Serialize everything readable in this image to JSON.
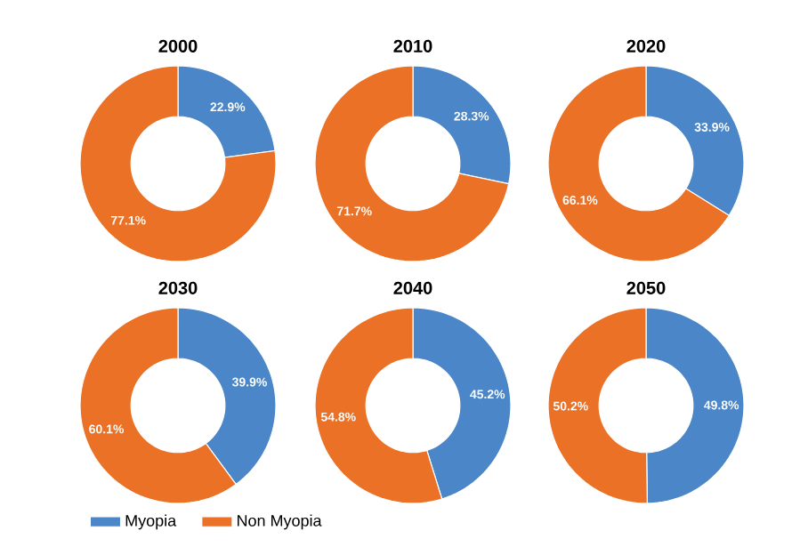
{
  "chart_data": [
    {
      "type": "donut",
      "title": "2000",
      "categories": [
        "Myopia",
        "Non Myopia"
      ],
      "values": [
        22.9,
        77.1
      ],
      "value_labels": [
        "22.9%",
        "77.1%"
      ],
      "colors": [
        "#4a86c8",
        "#ea7125"
      ],
      "legend": "bottom"
    },
    {
      "type": "donut",
      "title": "2010",
      "categories": [
        null,
        null
      ],
      "values": [
        28.3,
        71.7
      ],
      "value_labels": [
        "28.3%",
        "71.7%"
      ],
      "colors": [
        "#4a86c8",
        "#ea7125"
      ]
    },
    {
      "type": "donut",
      "title": "2020",
      "categories": [
        null,
        null
      ],
      "values": [
        33.9,
        66.1
      ],
      "value_labels": [
        "33.9%",
        "66.1%"
      ],
      "colors": [
        "#4a86c8",
        "#ea7125"
      ]
    },
    {
      "type": "donut",
      "title": "2030",
      "categories": [
        null,
        null
      ],
      "values": [
        39.9,
        60.1
      ],
      "value_labels": [
        "39.9%",
        "60.1%"
      ],
      "colors": [
        "#4a86c8",
        "#ea7125"
      ]
    },
    {
      "type": "donut",
      "title": "2040",
      "categories": [
        null,
        null
      ],
      "values": [
        45.2,
        54.8
      ],
      "value_labels": [
        "45.2%",
        "54.8%"
      ],
      "colors": [
        "#4a86c8",
        "#ea7125"
      ]
    },
    {
      "type": "donut",
      "title": "2050",
      "categories": [
        null,
        null
      ],
      "values": [
        49.8,
        50.2
      ],
      "value_labels": [
        "49.8%",
        "50.2%"
      ],
      "colors": [
        "#4a86c8",
        "#ea7125"
      ]
    }
  ]
}
